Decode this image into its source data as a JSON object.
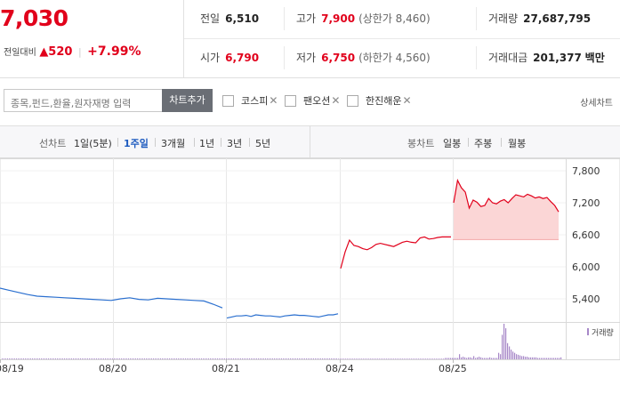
{
  "summary": {
    "price": "7,030",
    "change_label": "전일대비",
    "change_amount": "▲520",
    "change_percent": "+7.99%"
  },
  "stats": {
    "prev_close": {
      "label": "전일",
      "value": "6,510"
    },
    "high": {
      "label": "고가",
      "value": "7,900",
      "sub": "(상한가 8,460)"
    },
    "volume": {
      "label": "거래량",
      "value": "27,687,795"
    },
    "open": {
      "label": "시가",
      "value": "6,790"
    },
    "low": {
      "label": "저가",
      "value": "6,750",
      "sub": "(하한가 4,560)"
    },
    "trade_amount": {
      "label": "거래대금",
      "value": "201,377",
      "unit": "백만"
    }
  },
  "search": {
    "placeholder": "종목,펀드,환율,원자재명 입력",
    "button_label": "차트추가"
  },
  "compare": [
    {
      "label": "코스피"
    },
    {
      "label": "팬오션"
    },
    {
      "label": "한진해운"
    }
  ],
  "detail_link": "상세차트",
  "line_chart": {
    "label": "선차트",
    "periods": [
      "1일(5분)",
      "1주일",
      "3개월",
      "1년",
      "3년",
      "5년"
    ],
    "active": "1주일"
  },
  "candle_chart": {
    "label": "봉차트",
    "periods": [
      "일봉",
      "주봉",
      "월봉"
    ]
  },
  "volume_label": "거래량",
  "colors": {
    "up": "#e1001b",
    "down": "#2a6fcf",
    "fill": "#fbd6d6",
    "volume": "#a788c8"
  },
  "chart_data": {
    "type": "line",
    "x_labels": [
      "08/19",
      "08/20",
      "08/21",
      "08/24",
      "08/25"
    ],
    "y_ticks": [
      "7,800",
      "7,200",
      "6,600",
      "6,000",
      "5,400"
    ],
    "y_values": [
      7800,
      7200,
      6600,
      6000,
      5400
    ],
    "ylim": [
      5000,
      8000
    ],
    "prev_close": 6510,
    "series": [
      {
        "color": "down",
        "values": [
          5600,
          5560,
          5520,
          5480,
          5450,
          5440,
          5430,
          5420,
          5410,
          5400,
          5390,
          5380,
          5370,
          5400,
          5420,
          5390,
          5380,
          5410,
          5400,
          5390,
          5380,
          5370,
          5360,
          5300,
          5230
        ]
      },
      {
        "color": "down",
        "values": [
          5040,
          5060,
          5080,
          5080,
          5090,
          5070,
          5100,
          5090,
          5080,
          5080,
          5070,
          5060,
          5080,
          5090,
          5100,
          5090,
          5090,
          5080,
          5070,
          5060,
          5080,
          5100,
          5100,
          5120
        ]
      },
      {
        "color": "up",
        "values": [
          5970,
          6280,
          6500,
          6400,
          6380,
          6340,
          6320,
          6360,
          6420,
          6440,
          6420,
          6400,
          6380,
          6420,
          6460,
          6480,
          6460,
          6450,
          6540,
          6560,
          6520,
          6530,
          6550,
          6560,
          6560,
          6560
        ]
      },
      {
        "color": "up",
        "values": [
          7200,
          7620,
          7480,
          7400,
          7100,
          7250,
          7210,
          7130,
          7150,
          7280,
          7200,
          7180,
          7230,
          7260,
          7200,
          7280,
          7350,
          7330,
          7310,
          7360,
          7330,
          7290,
          7310,
          7280,
          7300,
          7220,
          7150,
          7030
        ]
      }
    ],
    "volume_bars": [
      1,
      1,
      1,
      1,
      1,
      1,
      1,
      1,
      1,
      1,
      1,
      1,
      1,
      1,
      1,
      1,
      1,
      1,
      1,
      1,
      1,
      1,
      1,
      1,
      1,
      1,
      1,
      1,
      1,
      1,
      1,
      1,
      1,
      1,
      1,
      1,
      1,
      1,
      1,
      1,
      1,
      1,
      1,
      1,
      1,
      1,
      1,
      1,
      1,
      1,
      1,
      1,
      1,
      1,
      1,
      1,
      1,
      1,
      1,
      1,
      2,
      2,
      2,
      2,
      2,
      2,
      2,
      2,
      8,
      3,
      4,
      3,
      2,
      3,
      3,
      2,
      5,
      2,
      3,
      4,
      3,
      2,
      2,
      2,
      2,
      3,
      2,
      2,
      2,
      2,
      10,
      8,
      38,
      55,
      48,
      25,
      20,
      15,
      12,
      10,
      8,
      7,
      6,
      5,
      5,
      4,
      4,
      3,
      3,
      3,
      3,
      3,
      2,
      2,
      2,
      2,
      2,
      2,
      2,
      2,
      2,
      2,
      2,
      2,
      2,
      3
    ]
  }
}
